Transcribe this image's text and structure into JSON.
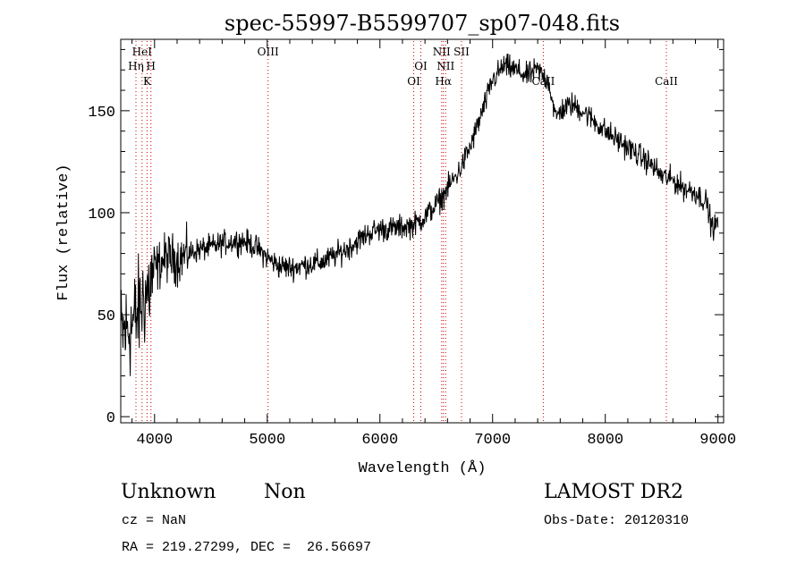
{
  "chart_data": {
    "type": "line",
    "title": "spec-55997-B5599707_sp07-048.fits",
    "xlabel": "Wavelength (Å)",
    "ylabel": "Flux (relative)",
    "xlim": [
      3700,
      9050
    ],
    "ylim": [
      -3,
      185
    ],
    "xticks": [
      4000,
      5000,
      6000,
      7000,
      8000,
      9000
    ],
    "yticks": [
      0,
      50,
      100,
      150
    ],
    "grid": false,
    "line_color": "#000000",
    "marker_color": "#d00000",
    "series": [
      {
        "x": [
          3700,
          3750,
          3800,
          3850,
          3900,
          3950,
          4000,
          4100,
          4200,
          4300,
          4400,
          4500,
          4600,
          4700,
          4800,
          4900,
          5000,
          5100,
          5200,
          5300,
          5400,
          5500,
          5600,
          5700,
          5800,
          5900,
          6000,
          6100,
          6200,
          6300,
          6400,
          6500,
          6560,
          6600,
          6700,
          6800,
          6900,
          7000,
          7100,
          7200,
          7300,
          7400,
          7500,
          7560,
          7600,
          7700,
          7800,
          7900,
          8000,
          8100,
          8200,
          8300,
          8400,
          8500,
          8600,
          8700,
          8800,
          8900,
          8950,
          9000
        ],
        "y": [
          40,
          42,
          45,
          50,
          58,
          63,
          72,
          78,
          77,
          80,
          82,
          83,
          85,
          86,
          86,
          83,
          78,
          74,
          73,
          74,
          75,
          76,
          79,
          82,
          86,
          90,
          92,
          92,
          93,
          94,
          98,
          104,
          108,
          112,
          120,
          132,
          148,
          165,
          172,
          170,
          167,
          170,
          164,
          146,
          150,
          153,
          150,
          145,
          140,
          136,
          132,
          128,
          124,
          118,
          116,
          112,
          110,
          105,
          92,
          95
        ]
      }
    ],
    "line_markers": [
      {
        "label": "HeI",
        "wavelength": 3889,
        "row": 1
      },
      {
        "label": "Hη",
        "wavelength": 3835,
        "row": 2
      },
      {
        "label": "H",
        "wavelength": 3968,
        "row": 2
      },
      {
        "label": "K",
        "wavelength": 3934,
        "row": 3
      },
      {
        "label": "OIII",
        "wavelength": 5007,
        "row": 1
      },
      {
        "label": "OI",
        "wavelength": 6363,
        "row": 2
      },
      {
        "label": "OI",
        "wavelength": 6300,
        "row": 3
      },
      {
        "label": "NII",
        "wavelength": 6548,
        "row": 1
      },
      {
        "label": "SII",
        "wavelength": 6724,
        "row": 1
      },
      {
        "label": "NII",
        "wavelength": 6583,
        "row": 2
      },
      {
        "label": "Hα",
        "wavelength": 6563,
        "row": 3
      },
      {
        "label": "CaII",
        "wavelength": 7450,
        "row": 3
      },
      {
        "label": "CaII",
        "wavelength": 8542,
        "row": 3
      }
    ]
  },
  "caption": {
    "object_class": "Unknown",
    "object_subclass": "Non",
    "survey": "LAMOST DR2",
    "cz": "cz = NaN",
    "obs_date": "Obs-Date: 20120310",
    "radec": "RA = 219.27299, DEC =  26.56697"
  }
}
